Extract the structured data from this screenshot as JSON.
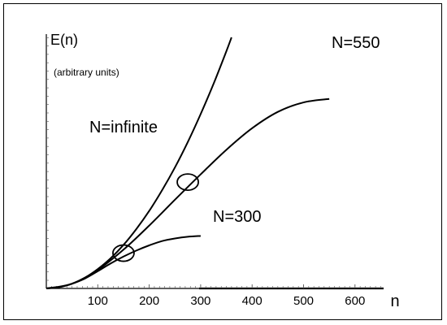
{
  "chart_data": {
    "type": "line",
    "ylabel": "E(n)",
    "ylabel_note": "(arbitrary units)",
    "xlabel": "n",
    "x_ticks": [
      100,
      200,
      300,
      400,
      500,
      600
    ],
    "xlim": [
      0,
      680
    ],
    "ylim": [
      0,
      1
    ],
    "grid": false,
    "series": [
      {
        "name": "N=infinite",
        "x": [
          0,
          25,
          50,
          75,
          100,
          125,
          150,
          175,
          200,
          225,
          250,
          275,
          300,
          325,
          350,
          360
        ],
        "y": [
          0,
          0.003,
          0.011,
          0.025,
          0.045,
          0.07,
          0.101,
          0.138,
          0.18,
          0.228,
          0.281,
          0.34,
          0.405,
          0.475,
          0.551,
          0.583
        ]
      },
      {
        "name": "N=550",
        "x": [
          0,
          50,
          100,
          150,
          200,
          250,
          300,
          350,
          400,
          450,
          500,
          550
        ],
        "y": [
          0,
          0.011,
          0.043,
          0.09,
          0.146,
          0.206,
          0.265,
          0.322,
          0.372,
          0.41,
          0.432,
          0.44
        ]
      },
      {
        "name": "N=300",
        "x": [
          0,
          25,
          50,
          75,
          100,
          125,
          150,
          175,
          200,
          225,
          250,
          275,
          300
        ],
        "y": [
          0,
          0.003,
          0.011,
          0.023,
          0.04,
          0.058,
          0.074,
          0.088,
          0.1,
          0.11,
          0.116,
          0.12,
          0.122
        ]
      }
    ],
    "annotations": [
      {
        "shape": "ellipse",
        "x": 150,
        "y": 0.082
      },
      {
        "shape": "ellipse",
        "x": 275,
        "y": 0.247
      }
    ]
  }
}
